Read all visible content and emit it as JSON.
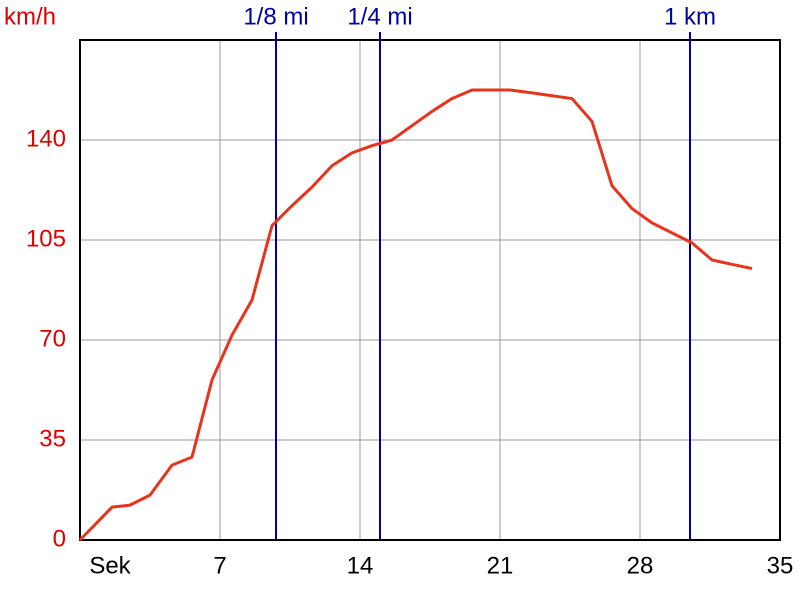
{
  "chart_data": {
    "type": "line",
    "y_label": "km/h",
    "x": [
      0,
      1.6,
      2.5,
      3.5,
      4.6,
      5.6,
      6.6,
      7.6,
      8.6,
      9.6,
      10.6,
      11.6,
      12.6,
      13.6,
      14.6,
      15.6,
      16.6,
      17.6,
      18.6,
      19.6,
      21.5,
      22.6,
      23.6,
      24.6,
      25.6,
      26.6,
      27.6,
      28.6,
      29.6,
      30.6,
      31.6,
      32.6,
      33.6
    ],
    "series": [
      {
        "color": "#e8341c",
        "values": [
          0,
          11.5,
          12.2,
          15.7,
          26.2,
          29,
          56,
          71.7,
          84,
          110,
          117,
          123.5,
          131,
          135.5,
          138,
          140,
          145,
          150,
          154.5,
          157.5,
          157.5,
          156.5,
          155.5,
          154.5,
          146.5,
          124,
          116,
          111,
          107.5,
          104,
          98,
          96.5,
          95
        ]
      }
    ],
    "xlim": [
      0,
      35
    ],
    "xticks": [
      {
        "value": 0,
        "label": "Sek"
      },
      7,
      14,
      21,
      28,
      35
    ],
    "ylim": [
      0,
      175
    ],
    "yticks": [
      0,
      35,
      70,
      105,
      140
    ],
    "grid": true,
    "markers": [
      {
        "name": "1/8 mi",
        "x": 9.8
      },
      {
        "name": "1/4 mi",
        "x": 15
      },
      {
        "name": "1 km",
        "x": 30.5
      }
    ],
    "marker_color": "#0000aa"
  }
}
